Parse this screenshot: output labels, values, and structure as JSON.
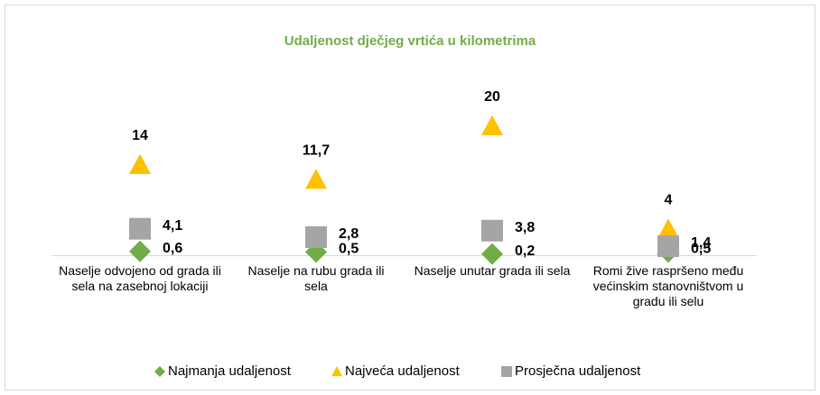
{
  "chart_data": {
    "type": "marker",
    "title": "Udaljenost dječjeg vrtića u kilometrima",
    "categories": [
      "Naselje odvojeno od grada ili sela na zasebnoj lokaciji",
      "Naselje na rubu grada ili sela",
      "Naselje unutar grada ili sela",
      "Romi žive raspršeno među većinskim stanovništvom u gradu ili selu"
    ],
    "series": [
      {
        "name": "Najmanja udaljenost",
        "color": "#70ad47",
        "marker": "diamond",
        "values": [
          0.6,
          0.5,
          0.2,
          0.5
        ],
        "value_labels": [
          "0,6",
          "0,5",
          "0,2",
          "0,5"
        ]
      },
      {
        "name": "Najveća udaljenost",
        "color": "#ffc000",
        "marker": "triangle",
        "values": [
          14,
          11.7,
          20,
          4
        ],
        "value_labels": [
          "14",
          "11,7",
          "20",
          "4"
        ]
      },
      {
        "name": "Prosječna udaljenost",
        "color": "#a5a5a5",
        "marker": "square",
        "values": [
          4.1,
          2.8,
          3.8,
          1.4
        ],
        "value_labels": [
          "4,1",
          "2,8",
          "3,8",
          "1,4"
        ]
      }
    ],
    "ylim": [
      0,
      25
    ],
    "legend": "bottom"
  }
}
